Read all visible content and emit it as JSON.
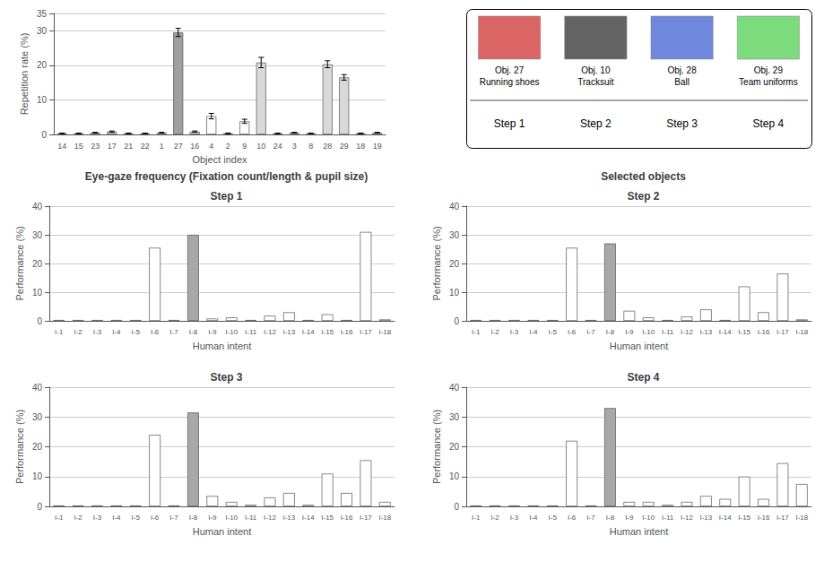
{
  "chart_data": [
    {
      "type": "bar",
      "xlabel": "Object index",
      "ylabel": "Repetition rate (%)",
      "categories": [
        "14",
        "15",
        "23",
        "17",
        "21",
        "22",
        "1",
        "27",
        "16",
        "4",
        "2",
        "9",
        "10",
        "24",
        "3",
        "8",
        "28",
        "29",
        "18",
        "19"
      ],
      "values": [
        0.3,
        0.3,
        0.5,
        0.8,
        0.3,
        0.3,
        0.5,
        29.5,
        0.8,
        5.3,
        0.3,
        3.8,
        20.8,
        0.3,
        0.5,
        0.3,
        20.3,
        16.5,
        0.3,
        0.5
      ],
      "errors": [
        0.1,
        0.1,
        0.1,
        0.2,
        0.1,
        0.1,
        0.1,
        1.2,
        0.2,
        0.8,
        0.1,
        0.6,
        1.5,
        0.1,
        0.1,
        0.1,
        1.0,
        0.8,
        0.1,
        0.1
      ],
      "colors": [
        "#d9d9d9",
        "#d9d9d9",
        "#d9d9d9",
        "#d9d9d9",
        "#d9d9d9",
        "#d9d9d9",
        "#d9d9d9",
        "#a0a0a0",
        "#d9d9d9",
        "#ffffff",
        "#d9d9d9",
        "#ffffff",
        "#d9d9d9",
        "#d9d9d9",
        "#d9d9d9",
        "#d9d9d9",
        "#d9d9d9",
        "#d9d9d9",
        "#d9d9d9",
        "#d9d9d9"
      ],
      "ylim": [
        0,
        35
      ],
      "yticks": [
        0,
        10,
        20,
        30
      ],
      "grid": true
    },
    {
      "type": "legend",
      "series": [
        {
          "name": "Obj. 27\nRunning shoes",
          "color": "#cc2222"
        },
        {
          "name": "Obj. 10\nTracksuit",
          "color": "#222222"
        },
        {
          "name": "Obj. 28\nBall",
          "color": "#3355cc"
        },
        {
          "name": "Obj. 29\nTeam uniforms",
          "color": "#44cc44"
        }
      ],
      "categories": [
        "Step 1",
        "Step 2",
        "Step 3",
        "Step 4"
      ]
    },
    {
      "type": "bar",
      "title": "Step 1",
      "annotations": [
        "Eye-gaze frequency (Fixation count/length & pupil size)"
      ],
      "xlabel": "Human intent",
      "ylabel": "Performance (%)",
      "categories": [
        "I-1",
        "I-2",
        "I-3",
        "I-4",
        "I-5",
        "I-6",
        "I-7",
        "I-8",
        "I-9",
        "I-10",
        "I-11",
        "I-12",
        "I-13",
        "I-14",
        "I-15",
        "I-16",
        "I-17",
        "I-18"
      ],
      "values": [
        0.3,
        0.3,
        0.3,
        0.3,
        0.3,
        25.5,
        0.3,
        30.0,
        0.8,
        1.2,
        0.3,
        1.8,
        3.0,
        0.3,
        2.3,
        0.3,
        31.0,
        0.5
      ],
      "colors": [
        "#ffffff",
        "#ffffff",
        "#ffffff",
        "#ffffff",
        "#ffffff",
        "#ffffff",
        "#ffffff",
        "#a8a8a8",
        "#ffffff",
        "#ffffff",
        "#ffffff",
        "#ffffff",
        "#ffffff",
        "#ffffff",
        "#ffffff",
        "#ffffff",
        "#ffffff",
        "#ffffff"
      ],
      "ylim": [
        0,
        40
      ],
      "yticks": [
        0,
        10,
        20,
        30,
        40
      ],
      "grid": true
    },
    {
      "type": "bar",
      "title": "Step 2",
      "annotations": [
        "Selected objects"
      ],
      "xlabel": "Human intent",
      "ylabel": "Performance (%)",
      "categories": [
        "I-1",
        "I-2",
        "I-3",
        "I-4",
        "I-5",
        "I-6",
        "I-7",
        "I-8",
        "I-9",
        "I-10",
        "I-11",
        "I-12",
        "I-13",
        "I-14",
        "I-15",
        "I-16",
        "I-17",
        "I-18"
      ],
      "values": [
        0.3,
        0.3,
        0.3,
        0.3,
        0.3,
        25.5,
        0.3,
        27.0,
        3.5,
        1.2,
        0.3,
        1.5,
        4.0,
        0.3,
        12.0,
        3.0,
        16.5,
        0.5
      ],
      "colors": [
        "#ffffff",
        "#ffffff",
        "#ffffff",
        "#ffffff",
        "#ffffff",
        "#ffffff",
        "#ffffff",
        "#a8a8a8",
        "#ffffff",
        "#ffffff",
        "#ffffff",
        "#ffffff",
        "#ffffff",
        "#ffffff",
        "#ffffff",
        "#ffffff",
        "#ffffff",
        "#ffffff"
      ],
      "ylim": [
        0,
        40
      ],
      "yticks": [
        0,
        10,
        20,
        30,
        40
      ],
      "grid": true
    },
    {
      "type": "bar",
      "title": "Step 3",
      "xlabel": "Human intent",
      "ylabel": "Performance (%)",
      "categories": [
        "I-1",
        "I-2",
        "I-3",
        "I-4",
        "I-5",
        "I-6",
        "I-7",
        "I-8",
        "I-9",
        "I-10",
        "I-11",
        "I-12",
        "I-13",
        "I-14",
        "I-15",
        "I-16",
        "I-17",
        "I-18"
      ],
      "values": [
        0.3,
        0.3,
        0.3,
        0.3,
        0.3,
        24.0,
        0.3,
        31.5,
        3.5,
        1.5,
        0.5,
        3.0,
        4.5,
        0.5,
        11.0,
        4.5,
        15.5,
        1.5
      ],
      "colors": [
        "#ffffff",
        "#ffffff",
        "#ffffff",
        "#ffffff",
        "#ffffff",
        "#ffffff",
        "#ffffff",
        "#a8a8a8",
        "#ffffff",
        "#ffffff",
        "#ffffff",
        "#ffffff",
        "#ffffff",
        "#ffffff",
        "#ffffff",
        "#ffffff",
        "#ffffff",
        "#ffffff"
      ],
      "ylim": [
        0,
        40
      ],
      "yticks": [
        0,
        10,
        20,
        30,
        40
      ],
      "grid": true
    },
    {
      "type": "bar",
      "title": "Step 4",
      "xlabel": "Human intent",
      "ylabel": "Performance (%)",
      "categories": [
        "I-1",
        "I-2",
        "I-3",
        "I-4",
        "I-5",
        "I-6",
        "I-7",
        "I-8",
        "I-9",
        "I-10",
        "I-11",
        "I-12",
        "I-13",
        "I-14",
        "I-15",
        "I-16",
        "I-17",
        "I-18"
      ],
      "values": [
        0.3,
        0.3,
        0.3,
        0.3,
        0.3,
        22.0,
        0.3,
        33.0,
        1.5,
        1.5,
        0.5,
        1.5,
        3.5,
        2.5,
        10.0,
        2.5,
        14.5,
        7.5
      ],
      "colors": [
        "#ffffff",
        "#ffffff",
        "#ffffff",
        "#ffffff",
        "#ffffff",
        "#ffffff",
        "#ffffff",
        "#a8a8a8",
        "#ffffff",
        "#ffffff",
        "#ffffff",
        "#ffffff",
        "#ffffff",
        "#ffffff",
        "#ffffff",
        "#ffffff",
        "#ffffff",
        "#ffffff"
      ],
      "ylim": [
        0,
        40
      ],
      "yticks": [
        0,
        10,
        20,
        30,
        40
      ],
      "grid": true
    }
  ]
}
